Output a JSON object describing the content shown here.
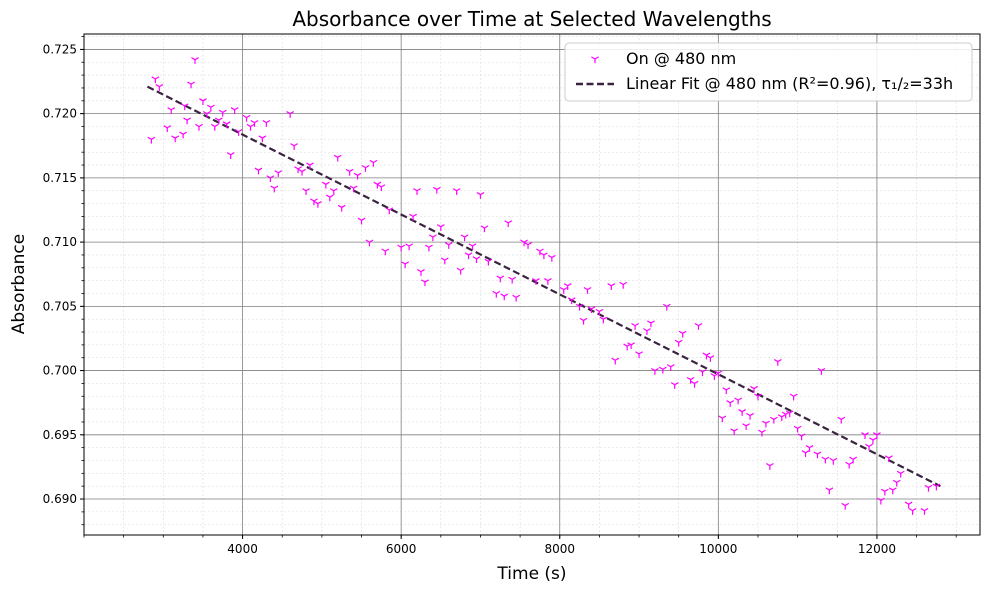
{
  "chart_data": {
    "type": "scatter",
    "title": "Absorbance over Time at Selected Wavelengths",
    "xlabel": "Time (s)",
    "ylabel": "Absorbance",
    "xlim": [
      2000,
      13300
    ],
    "ylim": [
      0.6872,
      0.7262
    ],
    "x_ticks": [
      4000,
      6000,
      8000,
      10000,
      12000
    ],
    "x_tick_labels": [
      "4000",
      "6000",
      "8000",
      "10000",
      "12000"
    ],
    "y_ticks": [
      0.69,
      0.695,
      0.7,
      0.705,
      0.71,
      0.715,
      0.72,
      0.725
    ],
    "y_tick_labels": [
      "0.690",
      "0.695",
      "0.700",
      "0.705",
      "0.710",
      "0.715",
      "0.720",
      "0.725"
    ],
    "x_minor_step": 500,
    "y_minor_step": 0.001,
    "grid": true,
    "legend_position": "top-right",
    "colors": {
      "scatter": "#ff00ff",
      "fit": "#3a2340"
    },
    "series": [
      {
        "name": "On @ 480 nm",
        "kind": "scatter",
        "marker": "tri-down",
        "points": [
          [
            2850,
            0.718
          ],
          [
            2900,
            0.7227
          ],
          [
            2950,
            0.7221
          ],
          [
            3050,
            0.7189
          ],
          [
            3100,
            0.7203
          ],
          [
            3150,
            0.7181
          ],
          [
            3250,
            0.7184
          ],
          [
            3270,
            0.7206
          ],
          [
            3300,
            0.7195
          ],
          [
            3350,
            0.7223
          ],
          [
            3400,
            0.7242
          ],
          [
            3450,
            0.719
          ],
          [
            3500,
            0.721
          ],
          [
            3550,
            0.72
          ],
          [
            3600,
            0.7205
          ],
          [
            3650,
            0.719
          ],
          [
            3700,
            0.7195
          ],
          [
            3750,
            0.7201
          ],
          [
            3800,
            0.7192
          ],
          [
            3850,
            0.7168
          ],
          [
            3900,
            0.7203
          ],
          [
            3950,
            0.7186
          ],
          [
            4050,
            0.7197
          ],
          [
            4100,
            0.719
          ],
          [
            4150,
            0.7193
          ],
          [
            4200,
            0.7156
          ],
          [
            4250,
            0.7181
          ],
          [
            4300,
            0.7193
          ],
          [
            4350,
            0.715
          ],
          [
            4400,
            0.7142
          ],
          [
            4450,
            0.7154
          ],
          [
            4600,
            0.72
          ],
          [
            4650,
            0.7175
          ],
          [
            4700,
            0.7157
          ],
          [
            4750,
            0.7155
          ],
          [
            4800,
            0.714
          ],
          [
            4850,
            0.716
          ],
          [
            4900,
            0.7132
          ],
          [
            4950,
            0.713
          ],
          [
            5050,
            0.7145
          ],
          [
            5100,
            0.7135
          ],
          [
            5150,
            0.714
          ],
          [
            5200,
            0.7166
          ],
          [
            5250,
            0.7127
          ],
          [
            5350,
            0.7155
          ],
          [
            5400,
            0.7142
          ],
          [
            5450,
            0.7152
          ],
          [
            5500,
            0.7117
          ],
          [
            5550,
            0.7158
          ],
          [
            5600,
            0.71
          ],
          [
            5650,
            0.7162
          ],
          [
            5700,
            0.7145
          ],
          [
            5750,
            0.7143
          ],
          [
            5800,
            0.7093
          ],
          [
            5850,
            0.7125
          ],
          [
            6000,
            0.7096
          ],
          [
            6050,
            0.7083
          ],
          [
            6100,
            0.7097
          ],
          [
            6150,
            0.712
          ],
          [
            6200,
            0.714
          ],
          [
            6250,
            0.7077
          ],
          [
            6300,
            0.7069
          ],
          [
            6350,
            0.7096
          ],
          [
            6400,
            0.7104
          ],
          [
            6450,
            0.7141
          ],
          [
            6500,
            0.7112
          ],
          [
            6550,
            0.7086
          ],
          [
            6600,
            0.7098
          ],
          [
            6700,
            0.714
          ],
          [
            6750,
            0.7078
          ],
          [
            6800,
            0.7104
          ],
          [
            6850,
            0.709
          ],
          [
            6900,
            0.7097
          ],
          [
            6950,
            0.7087
          ],
          [
            7000,
            0.7137
          ],
          [
            7050,
            0.7111
          ],
          [
            7100,
            0.7085
          ],
          [
            7200,
            0.706
          ],
          [
            7250,
            0.7072
          ],
          [
            7300,
            0.7058
          ],
          [
            7350,
            0.7115
          ],
          [
            7400,
            0.7071
          ],
          [
            7450,
            0.7057
          ],
          [
            7550,
            0.71
          ],
          [
            7600,
            0.7098
          ],
          [
            7700,
            0.707
          ],
          [
            7750,
            0.7093
          ],
          [
            7800,
            0.709
          ],
          [
            7850,
            0.707
          ],
          [
            7900,
            0.7088
          ],
          [
            8050,
            0.7063
          ],
          [
            8100,
            0.7066
          ],
          [
            8150,
            0.7055
          ],
          [
            8250,
            0.705
          ],
          [
            8300,
            0.7039
          ],
          [
            8350,
            0.7063
          ],
          [
            8400,
            0.7048
          ],
          [
            8500,
            0.7046
          ],
          [
            8550,
            0.704
          ],
          [
            8650,
            0.7066
          ],
          [
            8700,
            0.7008
          ],
          [
            8800,
            0.7067
          ],
          [
            8850,
            0.7019
          ],
          [
            8900,
            0.702
          ],
          [
            8950,
            0.7035
          ],
          [
            9000,
            0.7013
          ],
          [
            9100,
            0.7031
          ],
          [
            9150,
            0.7037
          ],
          [
            9200,
            0.7
          ],
          [
            9300,
            0.7001
          ],
          [
            9350,
            0.705
          ],
          [
            9400,
            0.7003
          ],
          [
            9450,
            0.6989
          ],
          [
            9500,
            0.7022
          ],
          [
            9550,
            0.7029
          ],
          [
            9650,
            0.6993
          ],
          [
            9700,
            0.699
          ],
          [
            9750,
            0.7035
          ],
          [
            9800,
            0.6999
          ],
          [
            9850,
            0.7012
          ],
          [
            9900,
            0.701
          ],
          [
            9950,
            0.6996
          ],
          [
            10000,
            0.6998
          ],
          [
            10050,
            0.6963
          ],
          [
            10100,
            0.6985
          ],
          [
            10150,
            0.6975
          ],
          [
            10200,
            0.6953
          ],
          [
            10250,
            0.6977
          ],
          [
            10300,
            0.6968
          ],
          [
            10350,
            0.6957
          ],
          [
            10400,
            0.6965
          ],
          [
            10450,
            0.6986
          ],
          [
            10500,
            0.698
          ],
          [
            10550,
            0.6952
          ],
          [
            10600,
            0.6959
          ],
          [
            10650,
            0.6926
          ],
          [
            10700,
            0.6962
          ],
          [
            10750,
            0.7007
          ],
          [
            10800,
            0.6964
          ],
          [
            10850,
            0.6966
          ],
          [
            10900,
            0.6967
          ],
          [
            10950,
            0.698
          ],
          [
            11000,
            0.6955
          ],
          [
            11050,
            0.6949
          ],
          [
            11100,
            0.6936
          ],
          [
            11150,
            0.694
          ],
          [
            11250,
            0.6935
          ],
          [
            11300,
            0.7
          ],
          [
            11350,
            0.6931
          ],
          [
            11400,
            0.6907
          ],
          [
            11450,
            0.693
          ],
          [
            11550,
            0.6962
          ],
          [
            11600,
            0.6895
          ],
          [
            11650,
            0.6927
          ],
          [
            11700,
            0.6931
          ],
          [
            11850,
            0.695
          ],
          [
            11900,
            0.6941
          ],
          [
            11950,
            0.6946
          ],
          [
            12000,
            0.695
          ],
          [
            12050,
            0.6899
          ],
          [
            12100,
            0.6906
          ],
          [
            12150,
            0.6932
          ],
          [
            12200,
            0.6907
          ],
          [
            12250,
            0.6913
          ],
          [
            12300,
            0.692
          ],
          [
            12400,
            0.6896
          ],
          [
            12450,
            0.6891
          ],
          [
            12600,
            0.6891
          ],
          [
            12650,
            0.6909
          ],
          [
            12750,
            0.691
          ]
        ]
      },
      {
        "name": "Linear Fit @ 480 nm (R²=0.96), τ₁/₂=33h",
        "kind": "line",
        "style": "dashed",
        "x": [
          2800,
          12800
        ],
        "y": [
          0.7221,
          0.691
        ]
      }
    ]
  }
}
